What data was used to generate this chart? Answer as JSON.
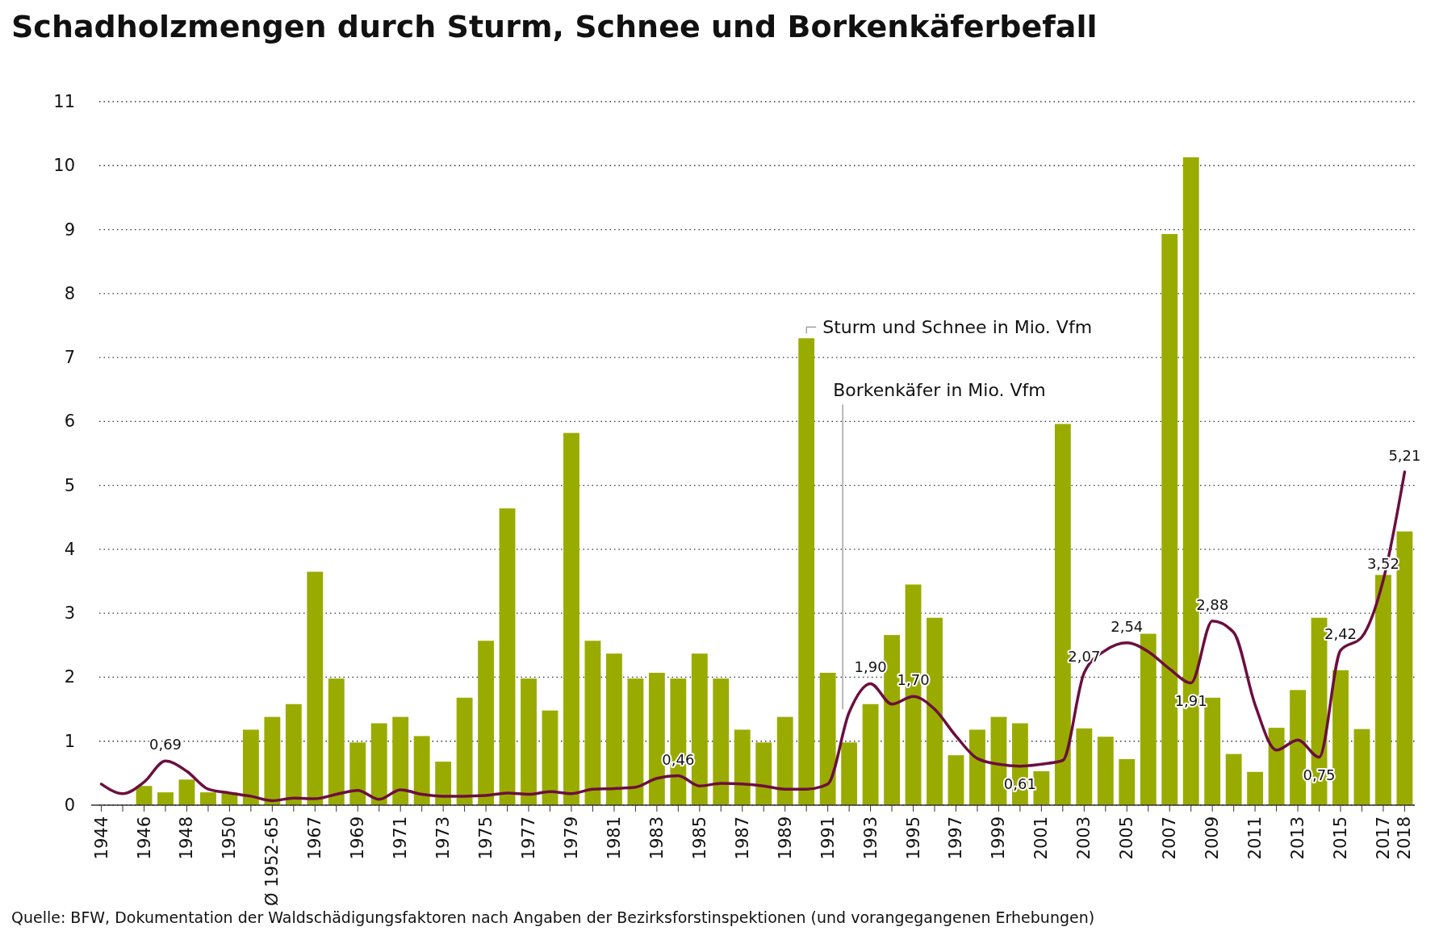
{
  "chart_data": {
    "type": "bar",
    "title": "Schadholzmengen durch Sturm, Schnee und Borkenkäferbefall",
    "categories": [
      "1944",
      null,
      "1946",
      null,
      "1948",
      null,
      "1950",
      null,
      "Ø 1952-65",
      null,
      "1967",
      null,
      "1969",
      null,
      "1971",
      null,
      "1973",
      null,
      "1975",
      null,
      "1977",
      null,
      "1979",
      null,
      "1981",
      null,
      "1983",
      null,
      "1985",
      null,
      "1987",
      null,
      "1989",
      null,
      "1991",
      null,
      "1993",
      null,
      "1995",
      null,
      "1997",
      null,
      "1999",
      null,
      "2001",
      null,
      "2003",
      null,
      "2005",
      null,
      "2007",
      null,
      "2009",
      null,
      "2011",
      null,
      "2013",
      null,
      "2015",
      null,
      "2017",
      "2018"
    ],
    "series": [
      {
        "name": "Sturm und Schnee in Mio. Vfm",
        "color": "#9aab00",
        "values": [
          null,
          null,
          0.3,
          0.2,
          0.4,
          0.2,
          0.2,
          1.18,
          1.38,
          1.58,
          3.65,
          1.98,
          0.98,
          1.28,
          1.38,
          1.08,
          0.68,
          1.68,
          2.57,
          4.64,
          1.98,
          1.48,
          5.82,
          2.57,
          2.37,
          1.98,
          2.07,
          1.98,
          2.37,
          1.98,
          1.18,
          0.98,
          1.38,
          7.3,
          2.07,
          0.98,
          1.58,
          2.66,
          3.45,
          2.93,
          0.78,
          1.18,
          1.38,
          1.28,
          0.53,
          5.96,
          1.2,
          1.07,
          0.72,
          2.68,
          8.93,
          10.13,
          1.68,
          0.8,
          0.52,
          1.21,
          1.8,
          2.93,
          2.11,
          1.19,
          3.6,
          4.28
        ]
      },
      {
        "name": "Borkenkäfer in Mio. Vfm",
        "type": "line",
        "color": "#6b0f3f",
        "values": [
          0.33,
          0.18,
          0.36,
          0.69,
          0.53,
          0.25,
          0.19,
          0.14,
          0.07,
          0.11,
          0.1,
          0.17,
          0.23,
          0.09,
          0.24,
          0.17,
          0.14,
          0.14,
          0.15,
          0.19,
          0.17,
          0.21,
          0.18,
          0.25,
          0.26,
          0.28,
          0.42,
          0.46,
          0.3,
          0.34,
          0.33,
          0.3,
          0.25,
          0.25,
          0.33,
          1.45,
          1.9,
          1.58,
          1.7,
          1.5,
          1.08,
          0.73,
          0.64,
          0.61,
          0.64,
          0.7,
          2.07,
          2.42,
          2.54,
          2.4,
          2.13,
          1.91,
          2.88,
          2.7,
          1.57,
          0.86,
          1.02,
          0.75,
          2.42,
          2.63,
          3.52,
          5.21
        ],
        "value_labels": [
          null,
          null,
          null,
          "0,69",
          null,
          null,
          null,
          null,
          null,
          null,
          null,
          null,
          null,
          null,
          null,
          null,
          null,
          null,
          null,
          null,
          null,
          null,
          null,
          null,
          null,
          null,
          null,
          "0,46",
          null,
          null,
          null,
          null,
          null,
          null,
          null,
          null,
          "1,90",
          null,
          "1,70",
          null,
          null,
          null,
          null,
          "0,61",
          null,
          null,
          "2,07",
          null,
          "2,54",
          null,
          null,
          "1,91",
          "2,88",
          null,
          null,
          null,
          null,
          "0,75",
          "2,42",
          null,
          "3,52",
          "5,21"
        ]
      }
    ],
    "ylim": [
      0,
      11
    ],
    "yticks": [
      0,
      1,
      2,
      3,
      4,
      5,
      6,
      7,
      8,
      9,
      10,
      11
    ],
    "grid": "y",
    "legend": false,
    "annotations": [
      "Quelle: BFW, Dokumentation der Waldschädigungsfaktoren nach Angaben der Bezirksforstinspektionen (und vorangegangenen Erhebungen)"
    ]
  }
}
